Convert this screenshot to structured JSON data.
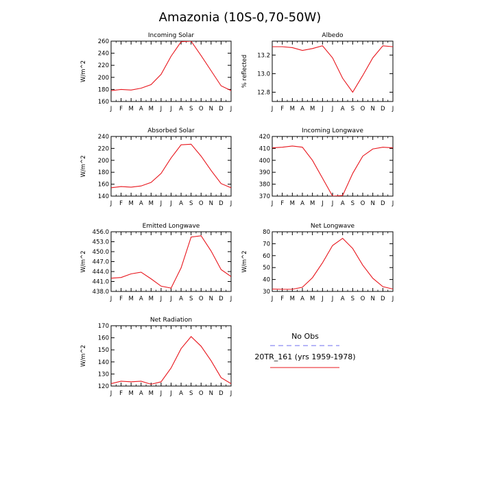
{
  "title": "Amazonia (10S-0,70-50W)",
  "months": [
    "J",
    "F",
    "M",
    "A",
    "M",
    "J",
    "J",
    "A",
    "S",
    "O",
    "N",
    "D",
    "J"
  ],
  "colors": {
    "model": "#e8141b",
    "obs": "#6b6bf0",
    "axis": "#000000"
  },
  "legend": {
    "obs_label": "No Obs",
    "model_label": "20TR_161 (yrs 1959-1978)"
  },
  "chart_data": [
    {
      "type": "line",
      "title": "Incoming Solar",
      "ylabel": "W/m^2",
      "ylim": [
        160,
        260
      ],
      "yticks": [
        160,
        180,
        200,
        220,
        240,
        260
      ],
      "ytick_labels": [
        "160",
        "180",
        "200",
        "220",
        "240",
        "260"
      ],
      "series": [
        {
          "name": "20TR_161 (yrs 1959-1978)",
          "values": [
            178,
            180,
            179,
            182,
            188,
            205,
            235,
            259,
            260,
            236,
            211,
            186,
            178
          ]
        }
      ]
    },
    {
      "type": "line",
      "title": "Albedo",
      "ylabel": "% reflected",
      "ylim": [
        12.7,
        13.35
      ],
      "yticks": [
        12.8,
        13.0,
        13.2
      ],
      "ytick_labels": [
        "12.8",
        "13.0",
        "13.2"
      ],
      "series": [
        {
          "name": "20TR_161 (yrs 1959-1978)",
          "values": [
            13.29,
            13.29,
            13.28,
            13.25,
            13.27,
            13.3,
            13.17,
            12.95,
            12.8,
            12.98,
            13.17,
            13.3,
            13.29
          ]
        }
      ]
    },
    {
      "type": "line",
      "title": "Absorbed Solar",
      "ylabel": "W/m^2",
      "ylim": [
        140,
        240
      ],
      "yticks": [
        140,
        160,
        180,
        200,
        220,
        240
      ],
      "ytick_labels": [
        "140",
        "160",
        "180",
        "200",
        "220",
        "240"
      ],
      "series": [
        {
          "name": "20TR_161 (yrs 1959-1978)",
          "values": [
            154,
            156,
            155,
            157,
            163,
            178,
            204,
            226,
            227,
            207,
            183,
            161,
            154
          ]
        }
      ]
    },
    {
      "type": "line",
      "title": "Incoming Longwave",
      "ylabel": "",
      "ylim": [
        370,
        420
      ],
      "yticks": [
        370,
        380,
        390,
        400,
        410,
        420
      ],
      "ytick_labels": [
        "370",
        "380",
        "390",
        "400",
        "410",
        "420"
      ],
      "series": [
        {
          "name": "20TR_161 (yrs 1959-1978)",
          "values": [
            410.5,
            411,
            412,
            411,
            400,
            385,
            370,
            370.5,
            389,
            403.5,
            409.5,
            411,
            410.5
          ]
        }
      ]
    },
    {
      "type": "line",
      "title": "Emitted Longwave",
      "ylabel": "W/m^2",
      "ylim": [
        438,
        456
      ],
      "yticks": [
        438,
        441,
        444,
        447,
        450,
        453,
        456
      ],
      "ytick_labels": [
        "438.0",
        "441.0",
        "444.0",
        "447.0",
        "450.0",
        "453.0",
        "456.0"
      ],
      "series": [
        {
          "name": "20TR_161 (yrs 1959-1978)",
          "values": [
            442,
            442.2,
            443.3,
            443.8,
            441.8,
            439.6,
            439,
            445.1,
            454.4,
            454.8,
            450.2,
            444.6,
            442.5
          ]
        }
      ]
    },
    {
      "type": "line",
      "title": "Net Longwave",
      "ylabel": "W/m^2",
      "ylim": [
        30,
        80
      ],
      "yticks": [
        30,
        40,
        50,
        60,
        70,
        80
      ],
      "ytick_labels": [
        "30",
        "40",
        "50",
        "60",
        "70",
        "80"
      ],
      "series": [
        {
          "name": "20TR_161 (yrs 1959-1978)",
          "values": [
            32,
            31.8,
            31.8,
            33.5,
            41.5,
            54,
            68.5,
            74.5,
            66,
            52,
            41,
            34,
            32
          ]
        }
      ]
    },
    {
      "type": "line",
      "title": "Net Radiation",
      "ylabel": "W/m^2",
      "ylim": [
        120,
        170
      ],
      "yticks": [
        120,
        130,
        140,
        150,
        160,
        170
      ],
      "ytick_labels": [
        "120",
        "130",
        "140",
        "150",
        "160",
        "170"
      ],
      "series": [
        {
          "name": "20TR_161 (yrs 1959-1978)",
          "values": [
            122,
            124,
            123.5,
            124,
            121.5,
            123.5,
            135,
            151,
            161,
            153,
            141,
            127,
            122
          ]
        }
      ]
    }
  ]
}
